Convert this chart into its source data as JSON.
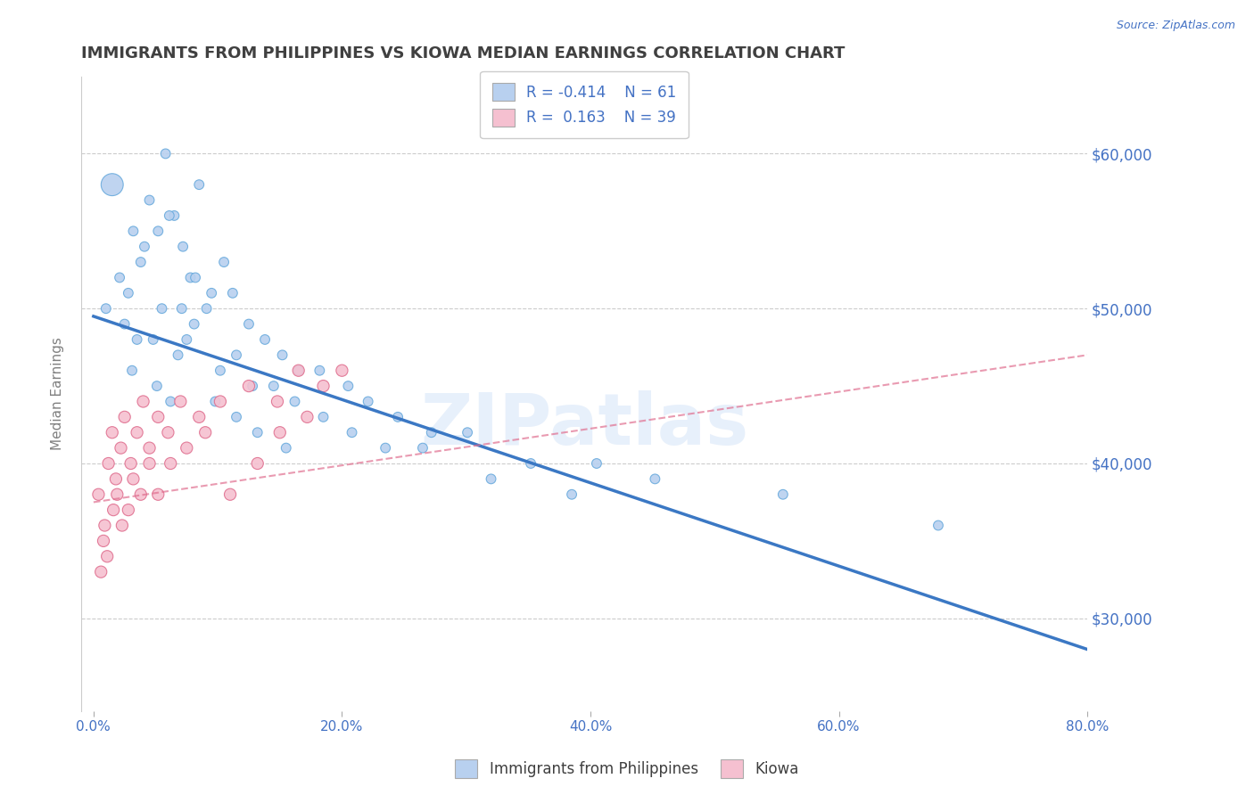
{
  "title": "IMMIGRANTS FROM PHILIPPINES VS KIOWA MEDIAN EARNINGS CORRELATION CHART",
  "source": "Source: ZipAtlas.com",
  "ylabel": "Median Earnings",
  "xlim": [
    -1.0,
    80.0
  ],
  "ylim": [
    24000,
    65000
  ],
  "yticks": [
    30000,
    40000,
    50000,
    60000
  ],
  "ytick_labels": [
    "$30,000",
    "$40,000",
    "$50,000",
    "$60,000"
  ],
  "xticks": [
    0.0,
    20.0,
    40.0,
    60.0,
    80.0
  ],
  "xtick_labels": [
    "0.0%",
    "20.0%",
    "40.0%",
    "60.0%",
    "80.0%"
  ],
  "series1_name": "Immigrants from Philippines",
  "series1_R": -0.414,
  "series1_N": 61,
  "series1_color": "#b8d0ef",
  "series1_edge": "#6aabdd",
  "series2_name": "Kiowa",
  "series2_R": 0.163,
  "series2_N": 39,
  "series2_color": "#f5c0d0",
  "series2_edge": "#e07090",
  "background_color": "#ffffff",
  "grid_color": "#cccccc",
  "axis_color": "#4472c4",
  "title_color": "#404040",
  "series1_x": [
    1.5,
    3.2,
    5.8,
    2.1,
    4.5,
    7.2,
    1.0,
    6.5,
    3.8,
    8.5,
    2.8,
    5.2,
    9.1,
    4.1,
    7.8,
    6.1,
    3.5,
    10.5,
    5.5,
    8.2,
    2.5,
    11.2,
    4.8,
    7.1,
    12.5,
    6.8,
    9.5,
    3.1,
    13.8,
    8.1,
    11.5,
    5.1,
    15.2,
    10.2,
    7.5,
    16.5,
    12.8,
    6.2,
    18.2,
    14.5,
    9.8,
    20.5,
    16.2,
    11.5,
    22.1,
    18.5,
    13.2,
    24.5,
    20.8,
    15.5,
    27.2,
    23.5,
    30.1,
    26.5,
    35.2,
    32.0,
    40.5,
    38.5,
    45.2,
    55.5,
    68.0
  ],
  "series1_y": [
    58000,
    55000,
    60000,
    52000,
    57000,
    54000,
    50000,
    56000,
    53000,
    58000,
    51000,
    55000,
    50000,
    54000,
    52000,
    56000,
    48000,
    53000,
    50000,
    52000,
    49000,
    51000,
    48000,
    50000,
    49000,
    47000,
    51000,
    46000,
    48000,
    49000,
    47000,
    45000,
    47000,
    46000,
    48000,
    46000,
    45000,
    44000,
    46000,
    45000,
    44000,
    45000,
    44000,
    43000,
    44000,
    43000,
    42000,
    43000,
    42000,
    41000,
    42000,
    41000,
    42000,
    41000,
    40000,
    39000,
    40000,
    38000,
    39000,
    38000,
    36000
  ],
  "series2_x": [
    0.4,
    0.8,
    1.2,
    0.6,
    1.5,
    0.9,
    1.8,
    1.1,
    2.2,
    1.6,
    2.5,
    1.9,
    3.0,
    2.3,
    3.5,
    2.8,
    4.0,
    3.2,
    4.5,
    3.8,
    5.2,
    4.5,
    6.0,
    5.2,
    7.0,
    6.2,
    8.5,
    7.5,
    10.2,
    9.0,
    12.5,
    11.0,
    14.8,
    13.2,
    16.5,
    15.0,
    18.5,
    17.2,
    20.0
  ],
  "series2_y": [
    38000,
    35000,
    40000,
    33000,
    42000,
    36000,
    39000,
    34000,
    41000,
    37000,
    43000,
    38000,
    40000,
    36000,
    42000,
    37000,
    44000,
    39000,
    41000,
    38000,
    43000,
    40000,
    42000,
    38000,
    44000,
    40000,
    43000,
    41000,
    44000,
    42000,
    45000,
    38000,
    44000,
    40000,
    46000,
    42000,
    45000,
    43000,
    46000
  ],
  "series1_sizes_special": [
    [
      0,
      320
    ]
  ],
  "trend1_x0": 0.0,
  "trend1_y0": 49500,
  "trend1_x1": 80.0,
  "trend1_y1": 28000,
  "trend2_x0": 0.0,
  "trend2_y0": 37500,
  "trend2_x1": 80.0,
  "trend2_y1": 47000
}
